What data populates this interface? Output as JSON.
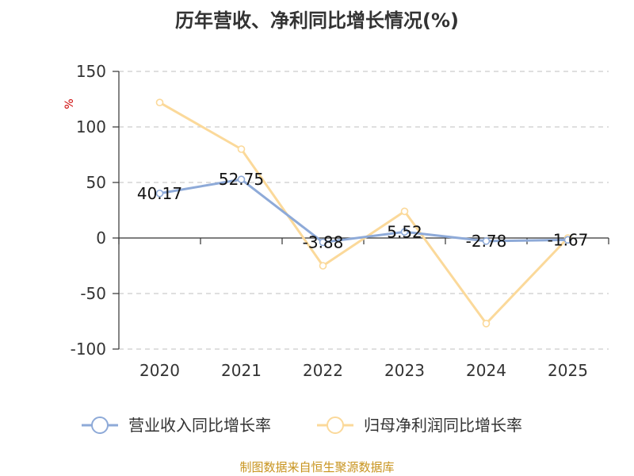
{
  "chart_data": {
    "type": "line",
    "title": "历年营收、净利同比增长情况(%)",
    "unit": "%",
    "categories": [
      "2020",
      "2021",
      "2022",
      "2023",
      "2024",
      "2025"
    ],
    "ylim": [
      -100,
      150
    ],
    "yticks": [
      150,
      100,
      50,
      0,
      -50,
      -100
    ],
    "grid": true,
    "legend_position": "bottom",
    "series": [
      {
        "name": "营业收入同比增长率",
        "color": "#8eaad8",
        "values": [
          40.17,
          52.75,
          -3.88,
          5.52,
          -2.78,
          -1.67
        ],
        "labels": [
          "40.17",
          "52.75",
          "-3.88",
          "5.52",
          "-2.78",
          "-1.67"
        ]
      },
      {
        "name": "归母净利润同比增长率",
        "color": "#fbd99a",
        "values": [
          122,
          80,
          -25,
          24,
          -77,
          0
        ]
      }
    ]
  },
  "source": "制图数据来自恒生聚源数据库"
}
